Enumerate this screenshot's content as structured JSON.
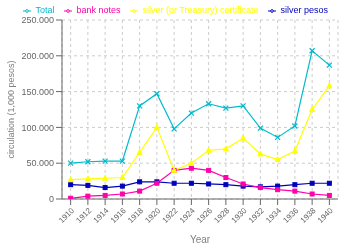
{
  "chart_data": {
    "type": "line",
    "xlabel": "Year",
    "ylabel": "circulation (1,000 pesos)",
    "x": [
      1910,
      1912,
      1914,
      1916,
      1918,
      1920,
      1922,
      1924,
      1926,
      1928,
      1930,
      1932,
      1934,
      1936,
      1938,
      1940
    ],
    "series": [
      {
        "name": "silver pesos",
        "color": "#0000bb",
        "marker": "square",
        "values": [
          20000,
          19000,
          16000,
          18000,
          24000,
          24000,
          22000,
          22000,
          21000,
          20000,
          18000,
          17000,
          18000,
          20000,
          22000,
          22000
        ]
      },
      {
        "name": "bank notes",
        "color": "#ff00aa",
        "marker": "square",
        "values": [
          1000,
          4000,
          5000,
          7000,
          11000,
          22000,
          40000,
          43000,
          40000,
          30000,
          21000,
          16000,
          13000,
          11000,
          7000,
          5000
        ]
      },
      {
        "name": "silver (or Treasury) certificate",
        "color": "#ffff00",
        "marker": "triangle",
        "values": [
          27000,
          28000,
          29000,
          30000,
          65000,
          100000,
          40000,
          50000,
          68000,
          70000,
          85000,
          63000,
          55000,
          67000,
          125000,
          158000
        ]
      },
      {
        "name": "Total",
        "color": "#00bbcc",
        "marker": "x",
        "values": [
          50000,
          52000,
          53000,
          53000,
          130000,
          147000,
          98000,
          120000,
          133000,
          127000,
          130000,
          99000,
          86000,
          102000,
          207000,
          187000
        ]
      }
    ],
    "xlim": [
      1909,
      1941
    ],
    "xticks": [
      1910,
      1912,
      1914,
      1916,
      1918,
      1920,
      1922,
      1924,
      1926,
      1928,
      1930,
      1932,
      1934,
      1936,
      1938,
      1940
    ],
    "ylim": [
      0,
      250000
    ],
    "yticks": [
      0,
      {
        "value": 50000,
        "label": "50.000"
      },
      {
        "value": 100000,
        "label": "100.000"
      },
      {
        "value": 150000,
        "label": "150.000"
      },
      {
        "value": 200000,
        "label": "200.000"
      },
      {
        "value": 250000,
        "label": "250.000"
      }
    ],
    "grid": true,
    "legend": "upper right"
  }
}
